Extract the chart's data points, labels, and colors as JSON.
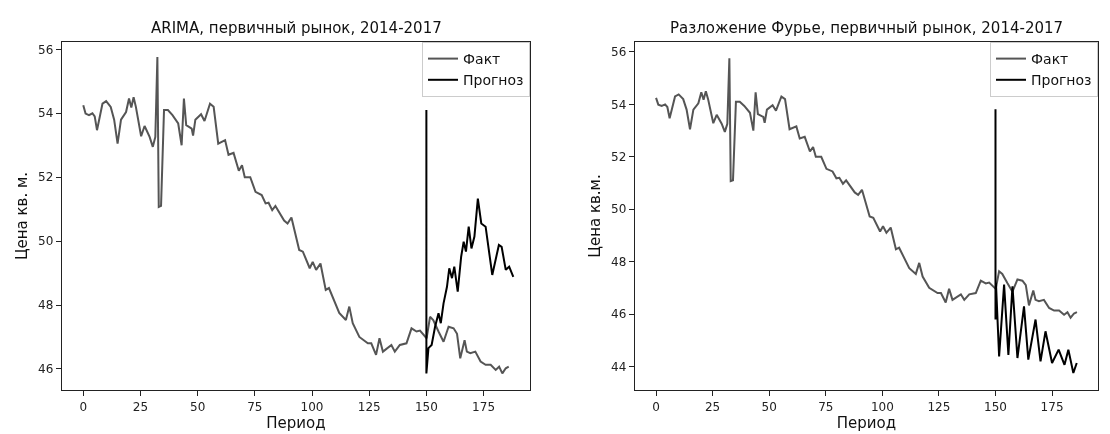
{
  "chart_data": [
    {
      "type": "line",
      "title": "ARIMA, первичный рынок, 2014-2017",
      "xlabel": "Период",
      "ylabel": "Цена кв. м.",
      "xlim": [
        -9.3,
        195.3
      ],
      "ylim": [
        45.34,
        56.23
      ],
      "xticks": [
        0,
        25,
        50,
        75,
        100,
        125,
        150,
        175
      ],
      "yticks": [
        46,
        48,
        50,
        52,
        54,
        56
      ],
      "grid": false,
      "legend": "top right",
      "line_style": "solid",
      "marker": "none",
      "series": [
        {
          "name": "Факт",
          "color": "#555555",
          "x": [
            0,
            1,
            2.5,
            4,
            5,
            6,
            8.4,
            10,
            12,
            13.5,
            15,
            16.5,
            18.7,
            20,
            21,
            22,
            23,
            25.3,
            26.8,
            29,
            30.4,
            31.5,
            32.4,
            33,
            34,
            35.3,
            37,
            39,
            41.5,
            43,
            44,
            45,
            47.4,
            48,
            49,
            51.5,
            53,
            55.4,
            57,
            59,
            62,
            63.5,
            65.7,
            68,
            69.4,
            70.6,
            73,
            75.3,
            78,
            79.7,
            81,
            82.6,
            84,
            87.8,
            89.3,
            91,
            94.4,
            96,
            99,
            100.3,
            101.8,
            103.7,
            106,
            107.4,
            111.9,
            114.8,
            116.3,
            117.8,
            120.7,
            124.4,
            125.9,
            128,
            129.5,
            131,
            134.7,
            136.2,
            138.4,
            141.3,
            143.5,
            145.7,
            147.2,
            150.1,
            151.6,
            153,
            155.3,
            157.5,
            159.7,
            161.9,
            163.4,
            164.8,
            166.7,
            167.7,
            169.2,
            171.4,
            173.7,
            175.9,
            178.1,
            180.3,
            181.8,
            183.2,
            184.7,
            186
          ],
          "values": [
            54.25,
            53.99,
            53.94,
            54.0,
            53.9,
            53.47,
            54.3,
            54.38,
            54.2,
            53.8,
            53.05,
            53.8,
            54.04,
            54.46,
            54.18,
            54.5,
            54.2,
            53.28,
            53.6,
            53.26,
            52.95,
            53.26,
            55.76,
            51.07,
            51.1,
            54.1,
            54.1,
            53.94,
            53.68,
            53.0,
            54.46,
            53.63,
            53.52,
            53.3,
            53.8,
            53.97,
            53.76,
            54.3,
            54.2,
            53.05,
            53.16,
            52.7,
            52.76,
            52.2,
            52.37,
            52.0,
            52.0,
            51.54,
            51.44,
            51.18,
            51.2,
            50.97,
            51.1,
            50.64,
            50.55,
            50.74,
            49.72,
            49.67,
            49.15,
            49.35,
            49.1,
            49.3,
            48.47,
            48.53,
            47.75,
            47.53,
            47.95,
            47.43,
            47.0,
            46.8,
            46.8,
            46.44,
            46.96,
            46.54,
            46.75,
            46.54,
            46.75,
            46.8,
            47.27,
            47.17,
            47.2,
            46.96,
            47.63,
            47.53,
            47.17,
            46.85,
            47.32,
            47.27,
            47.1,
            46.33,
            46.9,
            46.54,
            46.49,
            46.54,
            46.23,
            46.13,
            46.13,
            45.97,
            46.07,
            45.86,
            46.02,
            46.07
          ]
        },
        {
          "name": "Прогноз",
          "color": "#000000",
          "x": [
            150,
            150,
            150.9,
            152.3,
            153.8,
            155.3,
            156.3,
            157.5,
            159,
            160,
            161.2,
            162.2,
            163.7,
            165.2,
            166.3,
            167.3,
            168.5,
            169.7,
            171,
            172.5,
            174,
            175.9,
            178.8,
            181.7,
            182.9,
            184.7,
            186.2,
            188
          ],
          "values": [
            54.1,
            45.86,
            46.65,
            46.75,
            47.32,
            47.74,
            47.43,
            48.05,
            48.57,
            49.15,
            48.84,
            49.2,
            48.42,
            49.51,
            49.98,
            49.67,
            50.45,
            49.77,
            50.14,
            51.33,
            50.55,
            50.45,
            48.94,
            49.88,
            49.82,
            49.1,
            49.2,
            48.88
          ]
        }
      ]
    },
    {
      "type": "line",
      "title": "Разложение Фурье, первичный рынок, 2014-2017",
      "xlabel": "Период",
      "ylabel": "Цена кв.м.",
      "xlim": [
        -9.3,
        195.3
      ],
      "ylim": [
        43.1,
        56.38
      ],
      "xticks": [
        0,
        25,
        50,
        75,
        100,
        125,
        150,
        175
      ],
      "yticks": [
        44,
        46,
        48,
        50,
        52,
        54,
        56
      ],
      "grid": false,
      "legend": "top right",
      "line_style": "solid",
      "marker": "none",
      "series": [
        {
          "name": "Факт",
          "color": "#555555",
          "x": [
            0,
            1,
            2.5,
            4,
            5,
            6,
            8.4,
            10,
            12,
            13.5,
            15,
            16.5,
            18.7,
            20,
            21,
            22,
            23,
            25.3,
            26.8,
            29,
            30.4,
            31.5,
            32.4,
            33,
            34,
            35.3,
            37,
            39,
            41.5,
            43,
            44,
            45,
            47.4,
            48,
            49,
            51.5,
            53,
            55.4,
            57,
            59,
            62,
            63.5,
            65.7,
            68,
            69.4,
            70.6,
            73,
            75.3,
            78,
            79.7,
            81,
            82.6,
            84,
            87.8,
            89.3,
            91,
            94.4,
            96,
            99,
            100.3,
            101.8,
            103.7,
            106,
            107.4,
            111.9,
            114.8,
            116.3,
            117.8,
            120.7,
            124.4,
            125.9,
            128,
            129.5,
            131,
            134.7,
            136.2,
            138.4,
            141.3,
            143.5,
            145.7,
            147.2,
            150.1,
            151.6,
            153,
            155.3,
            157.5,
            159.7,
            161.9,
            163.4,
            164.8,
            166.7,
            167.7,
            169.2,
            171.4,
            173.7,
            175.9,
            178.1,
            180.3,
            181.8,
            183.2,
            184.7,
            186
          ],
          "values": [
            54.25,
            53.99,
            53.94,
            54.0,
            53.9,
            53.47,
            54.3,
            54.38,
            54.2,
            53.8,
            53.05,
            53.8,
            54.04,
            54.46,
            54.18,
            54.5,
            54.2,
            53.28,
            53.6,
            53.26,
            52.95,
            53.26,
            55.76,
            51.07,
            51.1,
            54.1,
            54.1,
            53.94,
            53.68,
            53.0,
            54.46,
            53.63,
            53.52,
            53.3,
            53.8,
            53.97,
            53.76,
            54.3,
            54.2,
            53.05,
            53.16,
            52.7,
            52.76,
            52.2,
            52.37,
            52.0,
            52.0,
            51.54,
            51.44,
            51.18,
            51.2,
            50.97,
            51.1,
            50.64,
            50.55,
            50.74,
            49.72,
            49.67,
            49.15,
            49.35,
            49.1,
            49.3,
            48.47,
            48.53,
            47.75,
            47.53,
            47.95,
            47.43,
            47.0,
            46.8,
            46.8,
            46.44,
            46.96,
            46.54,
            46.75,
            46.54,
            46.75,
            46.8,
            47.27,
            47.17,
            47.2,
            46.96,
            47.63,
            47.53,
            47.17,
            46.85,
            47.32,
            47.27,
            47.1,
            46.33,
            46.9,
            46.54,
            46.49,
            46.54,
            46.23,
            46.13,
            46.13,
            45.97,
            46.07,
            45.86,
            46.02,
            46.07
          ]
        },
        {
          "name": "Прогноз",
          "color": "#000000",
          "x": [
            150,
            150,
            150.2,
            151.6,
            153.8,
            155.7,
            157.5,
            159.7,
            162.6,
            164.5,
            167.7,
            169.9,
            172.1,
            175,
            177.9,
            180.5,
            182.2,
            184.4,
            185.9
          ],
          "values": [
            53.81,
            45.79,
            47.19,
            44.38,
            47.12,
            44.44,
            47.06,
            44.32,
            46.29,
            44.26,
            45.79,
            44.19,
            45.34,
            44.13,
            44.64,
            44.06,
            44.64,
            43.75,
            44.13
          ]
        }
      ]
    }
  ]
}
